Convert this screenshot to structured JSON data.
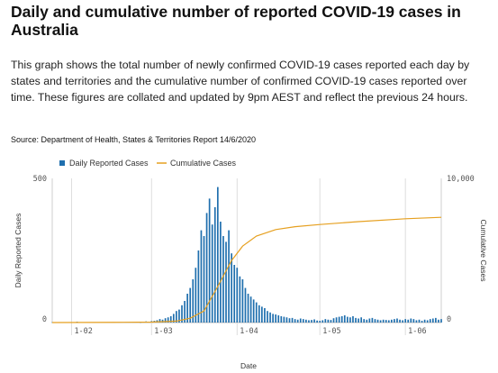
{
  "header": {
    "title": "Daily and cumulative number of reported COVID-19 cases in Australia",
    "description": "This graph shows the total number of newly confirmed COVID-19 cases reported each day by states and territories and the cumulative number of confirmed COVID-19 cases reported over time. These figures are collated and updated by 9pm AEST and reflect the previous 24 hours.",
    "source": "Source: Department of Health, States & Territories Report 14/6/2020"
  },
  "chart_data": {
    "type": "bar+line",
    "title": "Daily and cumulative number of reported COVID-19 cases in Australia",
    "xlabel": "Date",
    "ylabel_left": "Daily Reported Cases",
    "ylabel_right": "Cumulative Cases",
    "ylim_left": [
      0,
      500
    ],
    "ylim_right": [
      0,
      10000
    ],
    "y_ticks_left": [
      "0",
      "500"
    ],
    "y_ticks_right": [
      "0",
      "10,000"
    ],
    "x_range": [
      "2020-01-25",
      "2020-06-14"
    ],
    "x_ticks": [
      {
        "label": "1-02",
        "date": "2020-02-01"
      },
      {
        "label": "1-03",
        "date": "2020-03-01"
      },
      {
        "label": "1-04",
        "date": "2020-04-01"
      },
      {
        "label": "1-05",
        "date": "2020-05-01"
      },
      {
        "label": "1-06",
        "date": "2020-06-01"
      }
    ],
    "grid": "vertical",
    "legend_position": "top-center",
    "colors": {
      "daily": "#1f6fae",
      "cumulative": "#e6a020"
    },
    "series": [
      {
        "name": "Daily Reported Cases",
        "kind": "bar",
        "start_date": "2020-01-25",
        "values": [
          1,
          0,
          0,
          0,
          0,
          0,
          0,
          0,
          0,
          3,
          0,
          0,
          0,
          0,
          0,
          0,
          0,
          0,
          0,
          0,
          0,
          0,
          0,
          0,
          0,
          0,
          0,
          0,
          0,
          0,
          0,
          0,
          1,
          2,
          4,
          3,
          5,
          6,
          8,
          12,
          10,
          15,
          18,
          22,
          30,
          40,
          45,
          60,
          75,
          100,
          120,
          150,
          190,
          250,
          320,
          300,
          380,
          430,
          340,
          400,
          470,
          350,
          300,
          280,
          320,
          240,
          200,
          190,
          160,
          150,
          120,
          100,
          90,
          80,
          70,
          60,
          55,
          50,
          40,
          35,
          30,
          28,
          25,
          22,
          20,
          18,
          15,
          16,
          12,
          10,
          14,
          12,
          10,
          8,
          9,
          11,
          7,
          6,
          8,
          12,
          10,
          9,
          15,
          18,
          20,
          22,
          25,
          20,
          18,
          22,
          16,
          14,
          18,
          12,
          10,
          14,
          16,
          12,
          10,
          8,
          10,
          9,
          8,
          10,
          12,
          14,
          10,
          8,
          12,
          10,
          14,
          12,
          8,
          10,
          6,
          10,
          8,
          12,
          14,
          16,
          10,
          12
        ]
      },
      {
        "name": "Cumulative Cases",
        "kind": "line",
        "start_date": "2020-01-25",
        "values": [
          [
            "2020-01-25",
            0
          ],
          [
            "2020-02-20",
            20
          ],
          [
            "2020-03-01",
            30
          ],
          [
            "2020-03-10",
            100
          ],
          [
            "2020-03-15",
            300
          ],
          [
            "2020-03-20",
            800
          ],
          [
            "2020-03-25",
            2500
          ],
          [
            "2020-03-30",
            4300
          ],
          [
            "2020-04-03",
            5300
          ],
          [
            "2020-04-08",
            6000
          ],
          [
            "2020-04-15",
            6450
          ],
          [
            "2020-04-22",
            6650
          ],
          [
            "2020-05-01",
            6800
          ],
          [
            "2020-05-15",
            7000
          ],
          [
            "2020-06-01",
            7200
          ],
          [
            "2020-06-14",
            7300
          ]
        ]
      }
    ]
  }
}
